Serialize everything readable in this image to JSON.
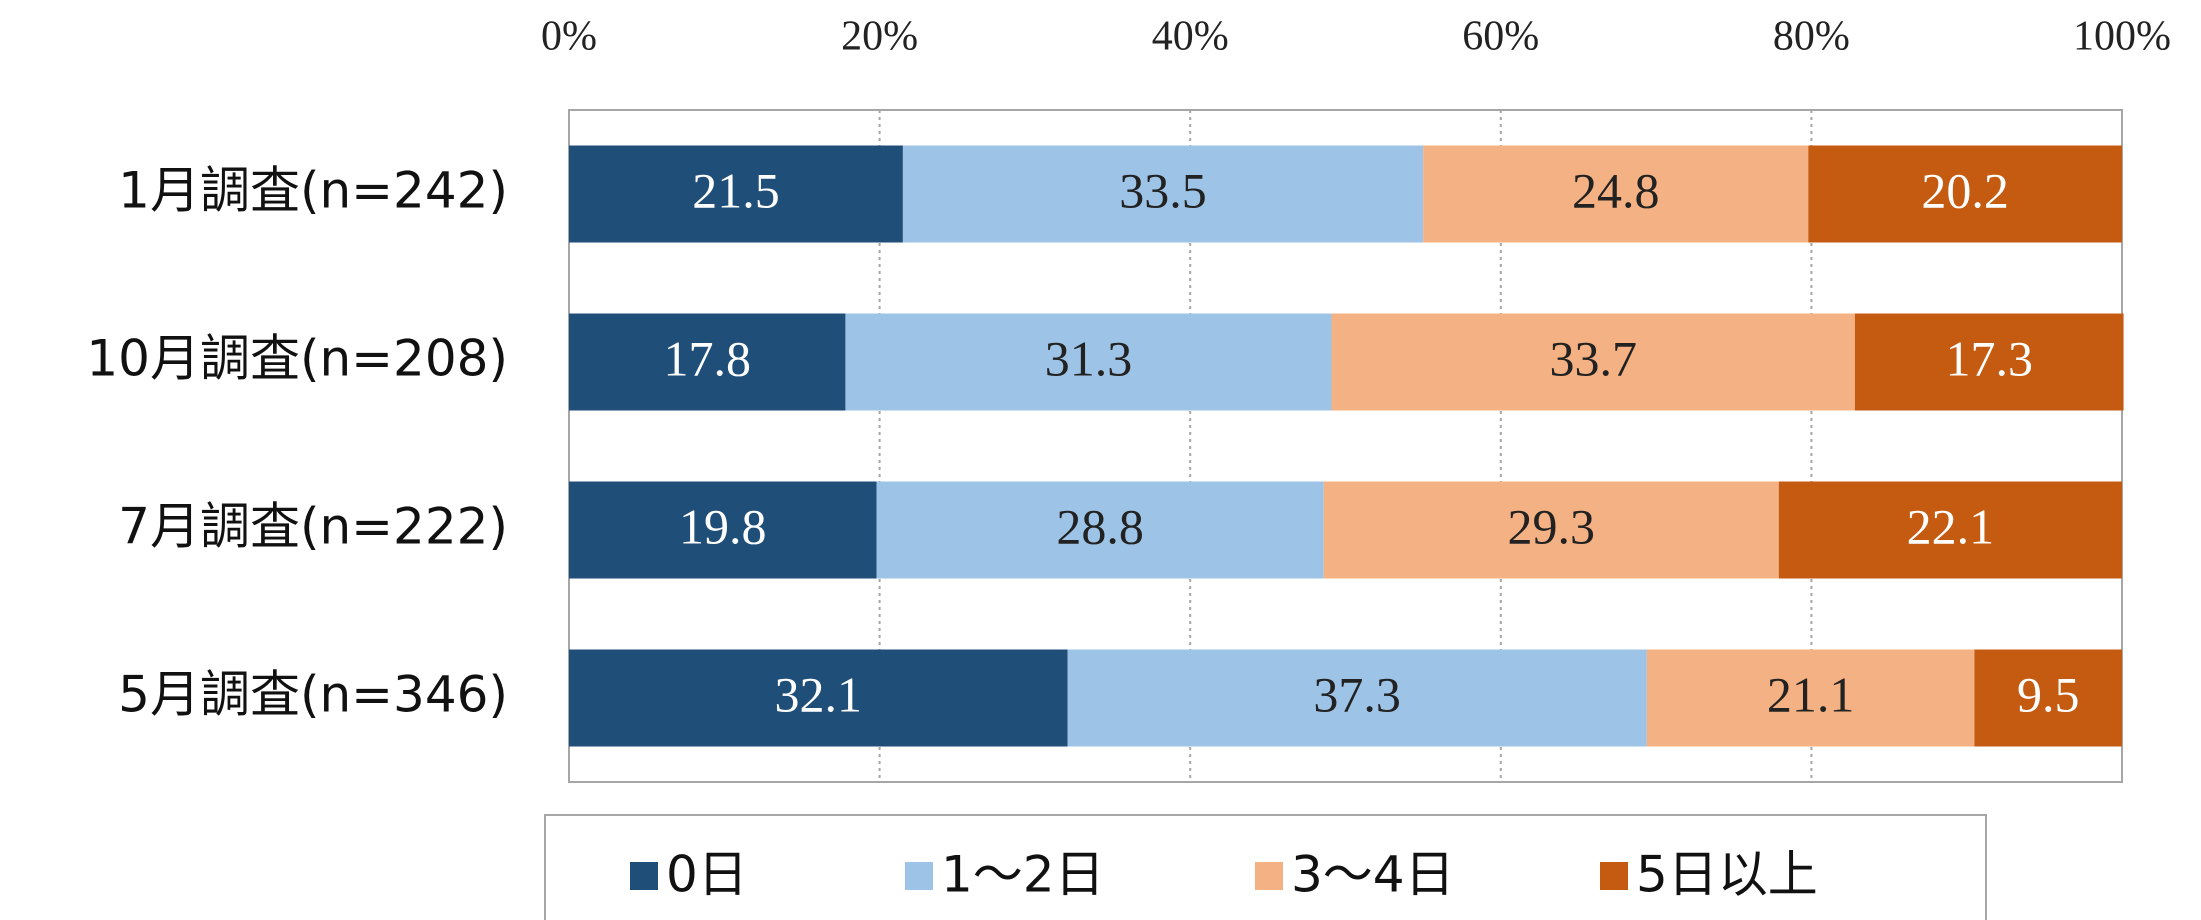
{
  "chart_data": {
    "type": "stacked_barh",
    "categories": [
      "1月調査(n=242)",
      "10月調査(n=208)",
      "7月調査(n=222)",
      "5月調査(n=346)"
    ],
    "series": [
      {
        "name": "0日",
        "color": "#1f4e79",
        "values": [
          21.5,
          17.8,
          19.8,
          32.1
        ]
      },
      {
        "name": "1～2日",
        "color": "#9dc3e6",
        "values": [
          33.5,
          31.3,
          28.8,
          37.3
        ]
      },
      {
        "name": "3～4日",
        "color": "#f4b183",
        "values": [
          24.8,
          33.7,
          29.3,
          21.1
        ]
      },
      {
        "name": "5日以上",
        "color": "#c55a11",
        "values": [
          20.2,
          17.3,
          22.1,
          9.5
        ]
      }
    ],
    "xlim": [
      0,
      100
    ],
    "xticks": [
      {
        "value": 0,
        "label": "0%"
      },
      {
        "value": 20,
        "label": "20%"
      },
      {
        "value": 40,
        "label": "40%"
      },
      {
        "value": 60,
        "label": "60%"
      },
      {
        "value": 80,
        "label": "80%"
      },
      {
        "value": 100,
        "label": "100%"
      }
    ],
    "grid": true,
    "legend": "bottom"
  }
}
